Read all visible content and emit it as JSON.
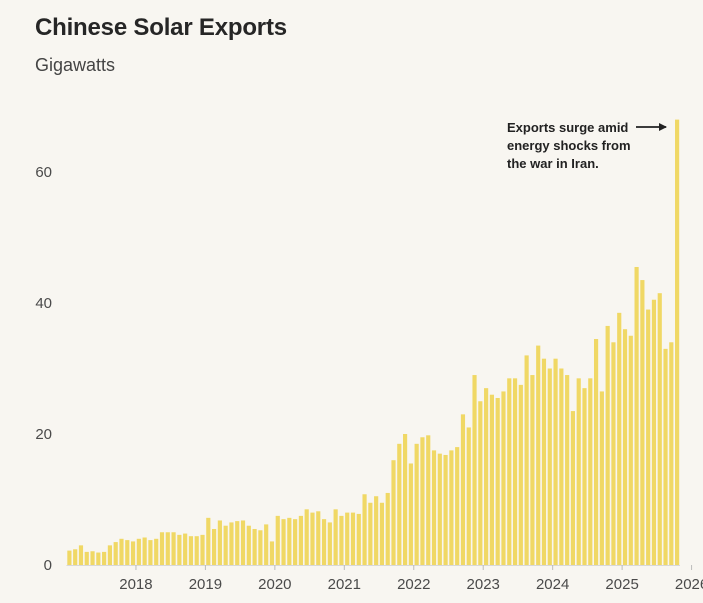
{
  "header": {
    "title": "Chinese Solar Exports",
    "subtitle": "Gigawatts"
  },
  "colors": {
    "bar": "#f0d865",
    "axis": "#d8d8d8",
    "background": "#f8f6f1"
  },
  "chart_data": {
    "type": "bar",
    "title": "Chinese Solar Exports",
    "subtitle": "Gigawatts",
    "xlabel": "",
    "ylabel": "Gigawatts",
    "ylim": [
      0,
      68
    ],
    "yticks": [
      0,
      20,
      40,
      60
    ],
    "start": "2017-01",
    "x_tick_labels": [
      "2018",
      "2019",
      "2020",
      "2021",
      "2022",
      "2023",
      "2024",
      "2025",
      "2026"
    ],
    "x_tick_month_index": [
      12,
      24,
      36,
      48,
      60,
      72,
      84,
      96,
      108
    ],
    "values": [
      2.2,
      2.4,
      3.0,
      2.0,
      2.1,
      1.9,
      2.0,
      3.0,
      3.5,
      4.0,
      3.8,
      3.6,
      4.0,
      4.2,
      3.8,
      4.0,
      5.0,
      5.0,
      5.0,
      4.6,
      4.8,
      4.4,
      4.4,
      4.6,
      7.2,
      5.5,
      6.8,
      6.0,
      6.5,
      6.7,
      6.8,
      6.0,
      5.5,
      5.3,
      6.2,
      3.6,
      7.5,
      7.0,
      7.2,
      7.0,
      7.5,
      8.5,
      8.0,
      8.2,
      7.0,
      6.5,
      8.5,
      7.5,
      8.0,
      8.0,
      7.8,
      10.8,
      9.5,
      10.5,
      9.5,
      11.0,
      16.0,
      18.5,
      20.0,
      15.5,
      18.5,
      19.5,
      19.8,
      17.5,
      17.0,
      16.8,
      17.5,
      18.0,
      23.0,
      21.0,
      29.0,
      25.0,
      27.0,
      26.0,
      25.5,
      26.5,
      28.5,
      28.5,
      27.5,
      32.0,
      29.0,
      33.5,
      31.5,
      30.0,
      31.5,
      30.0,
      29.0,
      23.5,
      28.5,
      27.0,
      28.5,
      34.5,
      26.5,
      36.5,
      34.0,
      38.5,
      36.0,
      35.0,
      45.5,
      43.5,
      39.0,
      40.5,
      41.5,
      33.0,
      34.0,
      68.0
    ],
    "annotation": {
      "lines": [
        "Exports surge amid",
        "energy shocks from",
        "the war in Iran."
      ],
      "target": "last bar"
    },
    "grid": false
  }
}
